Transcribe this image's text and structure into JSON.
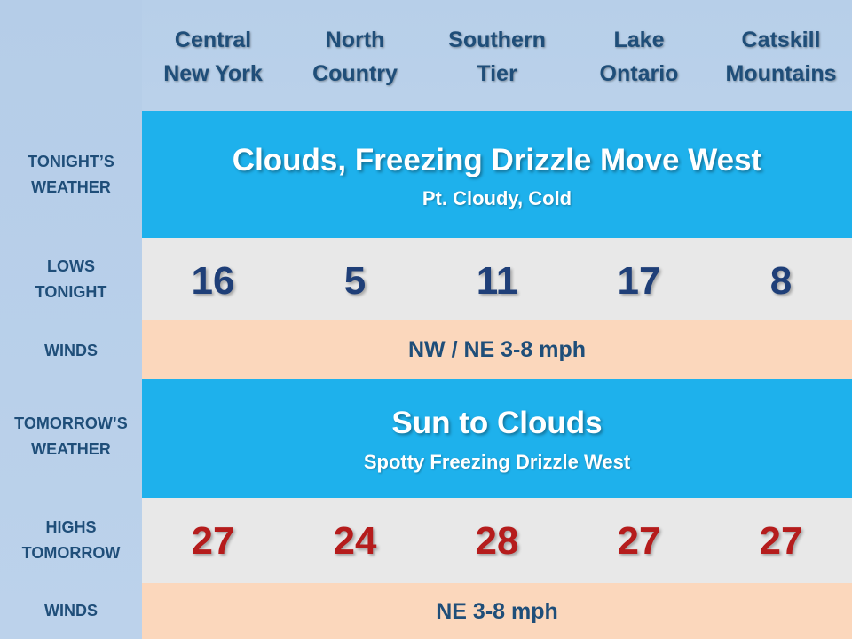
{
  "columns": [
    "Central\nNew York",
    "North\nCountry",
    "Southern\nTier",
    "Lake\nOntario",
    "Catskill\nMountains"
  ],
  "rows": {
    "tonights_weather_label": "TONIGHT’S\nWEATHER",
    "lows_label": "LOWS\nTONIGHT",
    "winds1_label": "WINDS",
    "tomorrows_weather_label": "TOMORROW’S\nWEATHER",
    "highs_label": "HIGHS\nTOMORROW",
    "winds2_label": "WINDS"
  },
  "tonight": {
    "title": "Clouds, Freezing Drizzle Move West",
    "subtitle": "Pt. Cloudy, Cold"
  },
  "lows": [
    "16",
    "5",
    "11",
    "17",
    "8"
  ],
  "winds_tonight": "NW / NE 3-8 mph",
  "tomorrow": {
    "title": "Sun to Clouds",
    "subtitle": "Spotty Freezing Drizzle West"
  },
  "highs": [
    "27",
    "24",
    "28",
    "27",
    "27"
  ],
  "winds_tomorrow": "NE 3-8 mph",
  "colors": {
    "low_temp": "#1f3f78",
    "high_temp": "#b51c1c",
    "header_text": "#1f4e79",
    "blue_band": "#1eb1ec",
    "gray_band": "#e8e8e8",
    "peach_band": "#fbd7bc"
  }
}
